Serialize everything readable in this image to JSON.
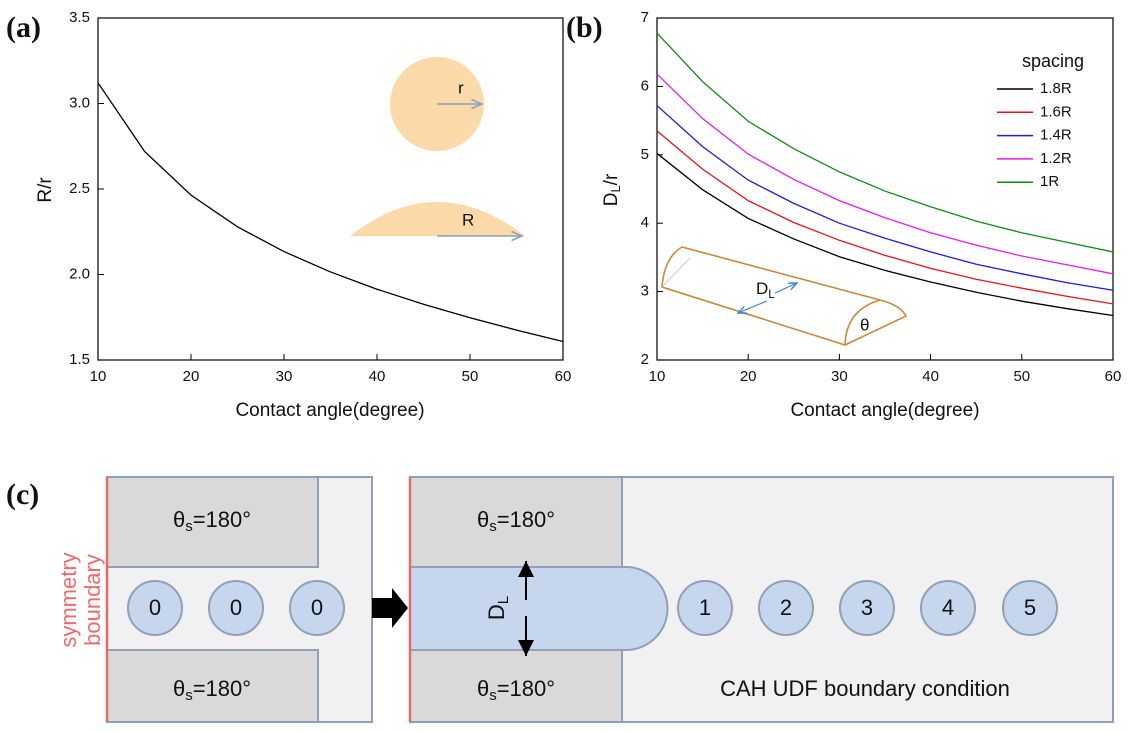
{
  "chart_data": [
    {
      "type": "line",
      "panel": "(a)",
      "xlabel": "Contact angle(degree)",
      "ylabel": "R/r",
      "x": [
        10,
        15,
        20,
        25,
        30,
        35,
        40,
        45,
        50,
        55,
        60
      ],
      "values": [
        3.121,
        2.72,
        2.464,
        2.279,
        2.134,
        2.015,
        1.914,
        1.826,
        1.747,
        1.675,
        1.608
      ],
      "color": "#000000",
      "xlim": [
        10,
        60
      ],
      "ylim": [
        1.5,
        3.5
      ],
      "xticks": [
        10,
        20,
        30,
        40,
        50,
        60
      ],
      "yticks": [
        1.5,
        {
          "value": 2,
          "label": "2.0"
        },
        2.5,
        {
          "value": 3,
          "label": "3.0"
        },
        3.5
      ],
      "annotations": [
        "r",
        "R"
      ]
    },
    {
      "type": "line",
      "panel": "(b)",
      "xlabel": "Contact angle(degree)",
      "ylabel": [
        "D",
        "L",
        "/r"
      ],
      "x": [
        10,
        15,
        20,
        25,
        30,
        35,
        40,
        45,
        50,
        55,
        60
      ],
      "series": [
        {
          "name": "1.8R",
          "color": "#000000",
          "values": [
            5.02,
            4.49,
            4.07,
            3.77,
            3.51,
            3.31,
            3.14,
            2.99,
            2.86,
            2.75,
            2.65
          ]
        },
        {
          "name": "1.6R",
          "color": "#e8141b",
          "values": [
            5.35,
            4.79,
            4.33,
            4.01,
            3.75,
            3.53,
            3.34,
            3.18,
            3.05,
            2.93,
            2.82
          ]
        },
        {
          "name": "1.4R",
          "color": "#1d1ddb",
          "values": [
            5.72,
            5.12,
            4.63,
            4.29,
            4.0,
            3.78,
            3.58,
            3.4,
            3.26,
            3.13,
            3.02
          ]
        },
        {
          "name": "1.2R",
          "color": "#e81be8",
          "values": [
            6.18,
            5.53,
            5.01,
            4.64,
            4.33,
            4.08,
            3.86,
            3.68,
            3.52,
            3.39,
            3.26
          ]
        },
        {
          "name": "1R",
          "color": "#168a16",
          "values": [
            6.78,
            6.07,
            5.49,
            5.09,
            4.75,
            4.47,
            4.24,
            4.03,
            3.86,
            3.72,
            3.58
          ]
        }
      ],
      "legend_title": "spacing",
      "legend": "upper right",
      "xlim": [
        10,
        60
      ],
      "ylim": [
        2,
        7
      ],
      "xticks": [
        10,
        20,
        30,
        40,
        50,
        60
      ],
      "yticks": [
        2,
        3,
        4,
        5,
        6,
        7
      ],
      "annotations": {
        "diameter": [
          "D",
          "L"
        ],
        "angle": "θ"
      }
    }
  ],
  "diagram": {
    "panel": "(c)",
    "boundary_label": [
      "symmetry",
      "boundary"
    ],
    "wall_label": [
      "θ",
      "s",
      "=180°"
    ],
    "initial_droplets": [
      "0",
      "0",
      "0"
    ],
    "released_droplets": [
      "1",
      "2",
      "3",
      "4",
      "5"
    ],
    "width_label": [
      "D",
      "L"
    ],
    "condition_label": "CAH UDF boundary condition"
  }
}
